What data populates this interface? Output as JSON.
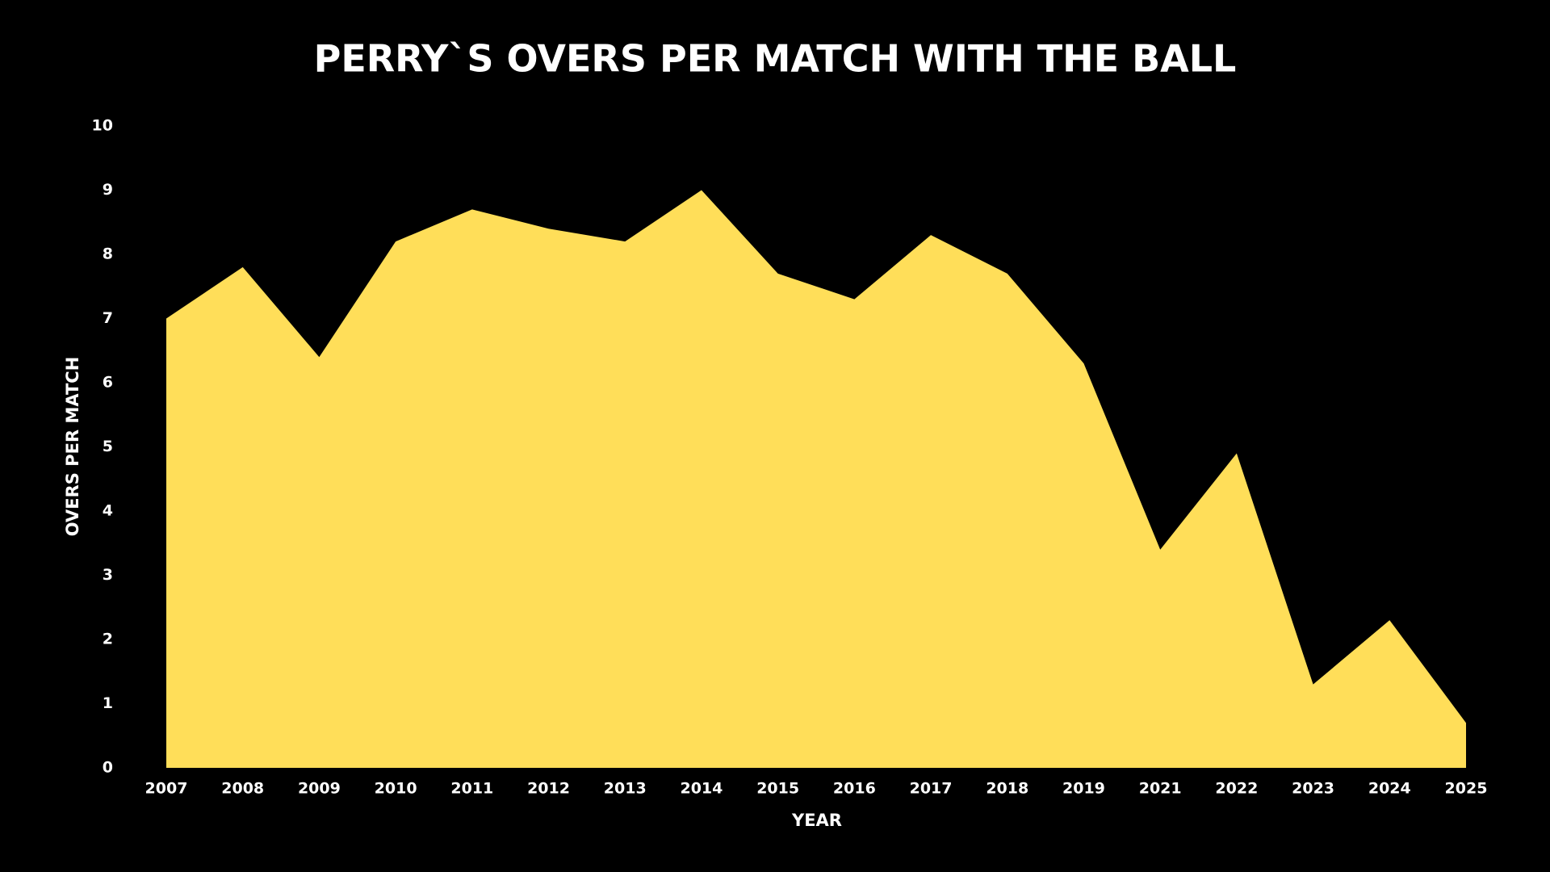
{
  "chart_data": {
    "type": "area",
    "title": "PERRY`S OVERS PER MATCH WITH THE BALL",
    "x_label": "YEAR",
    "y_label": "OVERS PER MATCH",
    "categories": [
      "2007",
      "2008",
      "2009",
      "2010",
      "2011",
      "2012",
      "2013",
      "2014",
      "2015",
      "2016",
      "2017",
      "2018",
      "2019",
      "2021",
      "2022",
      "2023",
      "2024",
      "2025"
    ],
    "values": [
      7.0,
      7.8,
      6.4,
      8.2,
      8.7,
      8.4,
      8.2,
      9.0,
      7.7,
      7.3,
      8.3,
      7.7,
      6.3,
      3.4,
      4.9,
      1.3,
      2.3,
      0.7
    ],
    "color": "#ffde59",
    "ylim": [
      0,
      10
    ],
    "yticks": [
      0,
      1,
      2,
      3,
      4,
      5,
      6,
      7,
      8,
      9,
      10
    ],
    "grid": false
  }
}
